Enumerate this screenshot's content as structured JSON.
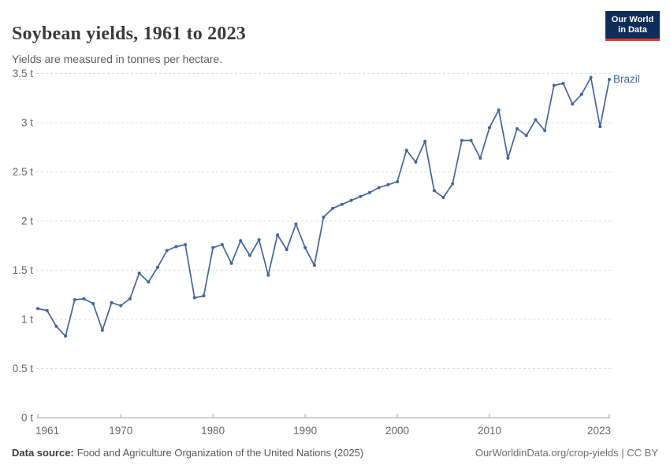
{
  "header": {
    "title": "Soybean yields, 1961 to 2023",
    "subtitle": "Yields are measured in tonnes per hectare."
  },
  "logo": {
    "line1": "Our World",
    "line2": "in Data",
    "bg_color": "#0f2d5a",
    "accent_color": "#dc3b2b"
  },
  "footer": {
    "source_label": "Data source:",
    "source_rest": "Food and Agriculture Organization of the United Nations (2025)",
    "credit": "OurWorldinData.org/crop-yields | CC BY"
  },
  "colors": {
    "line": "#4264a0",
    "grid": "#dcdcdc",
    "axis": "#a3a3a3",
    "tick_text": "#666666"
  },
  "chart_data": {
    "type": "line",
    "title": "Soybean yields, 1961 to 2023",
    "ylabel": "tonnes per hectare",
    "xlabel": "",
    "unit": "t",
    "grid": "horizontal-dashed",
    "legend_position": "end-of-line-label",
    "xlim": [
      1961,
      2023
    ],
    "ylim": [
      0,
      3.5
    ],
    "x_ticks": [
      1961,
      1970,
      1980,
      1990,
      2000,
      2010,
      2023
    ],
    "y_ticks": [
      0,
      0.5,
      1,
      1.5,
      2,
      2.5,
      3,
      3.5
    ],
    "y_tick_labels": [
      "0 t",
      "0.5 t",
      "1 t",
      "1.5 t",
      "2 t",
      "2.5 t",
      "3 t",
      "3.5 t"
    ],
    "years": [
      1961,
      1962,
      1963,
      1964,
      1965,
      1966,
      1967,
      1968,
      1969,
      1970,
      1971,
      1972,
      1973,
      1974,
      1975,
      1976,
      1977,
      1978,
      1979,
      1980,
      1981,
      1982,
      1983,
      1984,
      1985,
      1986,
      1987,
      1988,
      1989,
      1990,
      1991,
      1992,
      1993,
      1994,
      1995,
      1996,
      1997,
      1998,
      1999,
      2000,
      2001,
      2002,
      2003,
      2004,
      2005,
      2006,
      2007,
      2008,
      2009,
      2010,
      2011,
      2012,
      2013,
      2014,
      2015,
      2016,
      2017,
      2018,
      2019,
      2020,
      2021,
      2022,
      2023
    ],
    "series": [
      {
        "name": "Brazil",
        "color": "#4264a0",
        "values": [
          1.11,
          1.09,
          0.93,
          0.83,
          1.2,
          1.21,
          1.16,
          0.89,
          1.17,
          1.14,
          1.21,
          1.47,
          1.38,
          1.53,
          1.7,
          1.74,
          1.76,
          1.22,
          1.24,
          1.73,
          1.76,
          1.57,
          1.8,
          1.65,
          1.81,
          1.45,
          1.86,
          1.71,
          1.97,
          1.73,
          1.55,
          2.04,
          2.13,
          2.17,
          2.21,
          2.25,
          2.29,
          2.34,
          2.37,
          2.4,
          2.72,
          2.6,
          2.81,
          2.31,
          2.24,
          2.38,
          2.82,
          2.82,
          2.64,
          2.95,
          3.13,
          2.64,
          2.94,
          2.87,
          3.03,
          2.92,
          3.38,
          3.4,
          3.19,
          3.29,
          3.46,
          2.96,
          3.44
        ]
      }
    ]
  }
}
